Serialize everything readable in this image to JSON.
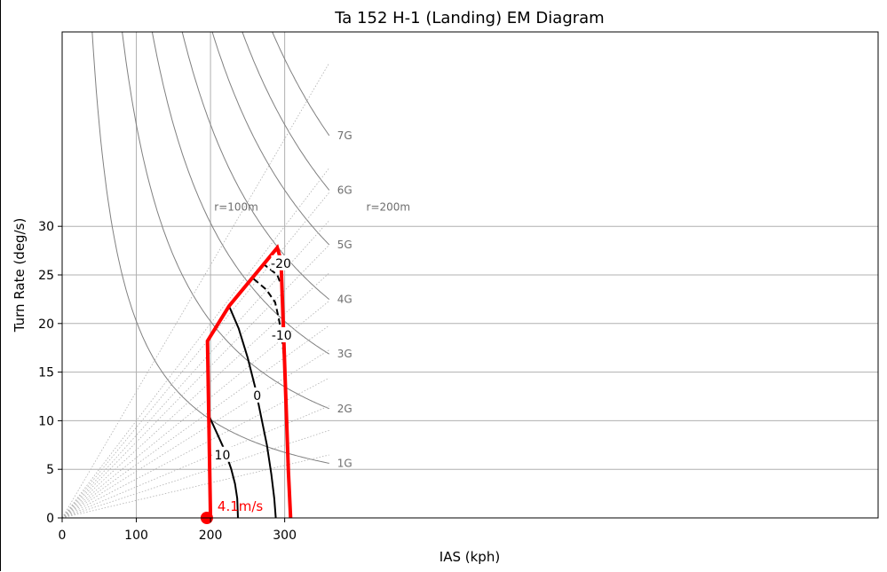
{
  "chart_data": {
    "type": "line",
    "title": "Ta 152 H-1 (Landing) EM Diagram",
    "xlabel": "IAS (kph)",
    "ylabel": "Turn Rate (deg/s)",
    "xlim": [
      0,
      1100
    ],
    "ylim": [
      0,
      50
    ],
    "xticks": [
      0,
      100,
      200,
      300
    ],
    "yticks": [
      0,
      5,
      10,
      15,
      20,
      25,
      30
    ],
    "grid": true,
    "g_curves": [
      {
        "label": "1G",
        "g": 1
      },
      {
        "label": "2G",
        "g": 2
      },
      {
        "label": "3G",
        "g": 3
      },
      {
        "label": "4G",
        "g": 4
      },
      {
        "label": "5G",
        "g": 5
      },
      {
        "label": "6G",
        "g": 6
      },
      {
        "label": "7G",
        "g": 7
      }
    ],
    "radius_labels": [
      {
        "label": "r=100m",
        "x": 205,
        "y": 32
      },
      {
        "label": "r=200m",
        "x": 410,
        "y": 32
      }
    ],
    "radius_ref_speeds": [
      200,
      300
    ],
    "envelope": {
      "color": "#ff0000",
      "points": [
        [
          200,
          0
        ],
        [
          196,
          18.2
        ],
        [
          225,
          21.8
        ],
        [
          290,
          27.8
        ],
        [
          295,
          26.5
        ],
        [
          305,
          4.8
        ],
        [
          308,
          0
        ]
      ]
    },
    "contours": [
      {
        "label": "-20",
        "style": "dashed",
        "points": [
          [
            270,
            26.2
          ],
          [
            280,
            25.6
          ],
          [
            290,
            25
          ],
          [
            296,
            23.8
          ]
        ],
        "label_at": [
          295,
          26.2
        ]
      },
      {
        "label": "-10",
        "style": "dashed",
        "points": [
          [
            258,
            24.6
          ],
          [
            275,
            23.5
          ],
          [
            287,
            22.2
          ],
          [
            292,
            20.5
          ],
          [
            296,
            18.8
          ],
          [
            299,
            16.5
          ],
          [
            301,
            14
          ],
          [
            303,
            11.5
          ]
        ],
        "label_at": [
          296,
          18.8
        ]
      },
      {
        "label": "0",
        "style": "solid",
        "points": [
          [
            225,
            21.8
          ],
          [
            238,
            19.5
          ],
          [
            250,
            16.5
          ],
          [
            260,
            13.5
          ],
          [
            268,
            10.5
          ],
          [
            276,
            7.5
          ],
          [
            282,
            4.5
          ],
          [
            286,
            2
          ],
          [
            288,
            0
          ]
        ],
        "label_at": [
          263,
          12.6
        ]
      },
      {
        "label": "10",
        "style": "solid",
        "points": [
          [
            198,
            10.5
          ],
          [
            210,
            8.5
          ],
          [
            220,
            6.8
          ],
          [
            228,
            5
          ],
          [
            233,
            3.5
          ],
          [
            236,
            2
          ],
          [
            237,
            0
          ]
        ],
        "label_at": [
          216,
          6.5
        ]
      }
    ],
    "marker": {
      "x": 195,
      "y": 0,
      "label": "4.1m/s",
      "color": "#ff0000"
    }
  }
}
